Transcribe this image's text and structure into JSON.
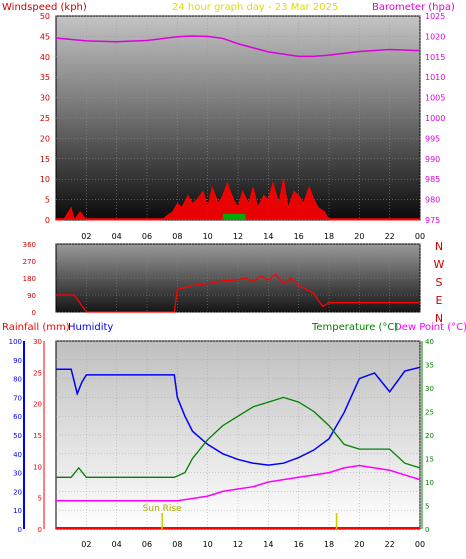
{
  "header": {
    "left_title": "Windspeed (kph)",
    "center_title": "24 hour graph day - 23 Mar 2025",
    "right_title": "Barometer (hpa)"
  },
  "middle_panel": {
    "compass_labels": [
      "N",
      "W",
      "S",
      "E",
      "N"
    ]
  },
  "bottom_header": {
    "rainfall": "Rainfall (mm)",
    "humidity": "Humidity",
    "temperature": "Temperature (°C)",
    "dewpoint": "Dew Point (°C)"
  },
  "annotation": {
    "sunrise": "Sun Rise"
  },
  "colors": {
    "frame": "#000000",
    "wind": "#ff0000",
    "gust": "#0000ff",
    "calm": "#00aa00",
    "barometer": "#dd00dd",
    "humidity": "#0000ff",
    "temperature": "#008000",
    "dewpoint": "#ff00ff",
    "rain": "#ff0000",
    "sun": "#cccc00",
    "title_left": "#cc0000",
    "title_center": "#dddd00",
    "title_right": "#dd00dd"
  },
  "chart_data": [
    {
      "type": "line",
      "name": "wind-barometer",
      "x_ticks": [
        "02",
        "04",
        "06",
        "08",
        "10",
        "12",
        "14",
        "16",
        "18",
        "20",
        "22",
        "00"
      ],
      "y_left_ticks": [
        "0",
        "5",
        "10",
        "15",
        "20",
        "25",
        "30",
        "35",
        "40",
        "45",
        "50"
      ],
      "y_right_ticks": [
        "975",
        "980",
        "985",
        "990",
        "995",
        "1000",
        "1005",
        "1010",
        "1015",
        "1020",
        "1025"
      ],
      "ylim_left": [
        0,
        50
      ],
      "ylim_right": [
        975,
        1025
      ],
      "series": [
        {
          "name": "Barometer (hpa)",
          "axis": "right",
          "x": [
            0,
            2,
            4,
            6,
            8,
            9,
            10,
            11,
            12,
            14,
            16,
            17,
            18,
            20,
            22,
            24
          ],
          "values": [
            1019.6,
            1018.9,
            1018.7,
            1019.0,
            1019.9,
            1020.1,
            1020.0,
            1019.5,
            1018.2,
            1016.2,
            1015.1,
            1015.1,
            1015.4,
            1016.3,
            1016.8,
            1016.5
          ]
        },
        {
          "name": "Windspeed (kph)",
          "axis": "left",
          "x": [
            0,
            0.5,
            1,
            1.2,
            1.6,
            2,
            7,
            7.3,
            7.7,
            8,
            8.3,
            8.7,
            9,
            9.3,
            9.7,
            10,
            10.3,
            10.7,
            11,
            11.3,
            11.7,
            12,
            12.3,
            12.7,
            13,
            13.3,
            13.7,
            14,
            14.3,
            14.7,
            15,
            15.3,
            15.7,
            16,
            16.3,
            16.7,
            17,
            17.3,
            17.7,
            18,
            24
          ],
          "values": [
            0,
            0,
            3,
            0,
            2,
            0,
            0,
            1,
            2,
            4,
            3,
            6,
            4,
            5,
            7,
            3,
            8,
            4,
            6,
            9,
            5,
            3,
            7,
            4,
            8,
            3,
            6,
            5,
            9,
            4,
            10,
            3,
            7,
            6,
            4,
            8,
            5,
            3,
            2,
            0,
            0
          ]
        }
      ]
    },
    {
      "type": "line",
      "name": "wind-direction",
      "y_ticks": [
        "360",
        "270",
        "180",
        "90",
        "0"
      ],
      "ylim": [
        0,
        360
      ],
      "series": [
        {
          "name": "Wind direction",
          "x": [
            0,
            0.5,
            1.2,
            1.6,
            2,
            6,
            7.8,
            8,
            9,
            10,
            11,
            12,
            12.5,
            13,
            13.5,
            14,
            14.5,
            15,
            15.5,
            16,
            16.5,
            17,
            17.3,
            17.6,
            18,
            20,
            22,
            24
          ],
          "values": [
            90,
            90,
            90,
            45,
            0,
            0,
            0,
            120,
            140,
            150,
            165,
            170,
            180,
            160,
            190,
            170,
            200,
            150,
            180,
            140,
            120,
            100,
            60,
            30,
            50,
            50,
            50,
            50
          ]
        }
      ]
    },
    {
      "type": "line",
      "name": "temperature-humidity-rain",
      "x_ticks": [
        "02",
        "04",
        "06",
        "08",
        "10",
        "12",
        "14",
        "16",
        "18",
        "20",
        "22",
        "00"
      ],
      "humidity_ticks": [
        "0",
        "10",
        "20",
        "30",
        "40",
        "50",
        "60",
        "70",
        "80",
        "90",
        "100"
      ],
      "rainfall_ticks": [
        "0",
        "5",
        "10",
        "15",
        "20",
        "25",
        "30"
      ],
      "temperature_ticks": [
        "0",
        "5",
        "10",
        "15",
        "20",
        "25",
        "30",
        "35",
        "40"
      ],
      "series": [
        {
          "name": "Humidity",
          "x": [
            0,
            1,
            1.4,
            1.7,
            2,
            2.2,
            7.8,
            8,
            8.5,
            9,
            10,
            11,
            12,
            13,
            14,
            15,
            16,
            17,
            18,
            19,
            20,
            21,
            22,
            23,
            24
          ],
          "values": [
            85,
            85,
            72,
            78,
            82,
            82,
            82,
            70,
            60,
            52,
            45,
            40,
            37,
            35,
            34,
            35,
            38,
            42,
            48,
            62,
            80,
            83,
            73,
            84,
            86
          ]
        },
        {
          "name": "Temperature (°C)",
          "x": [
            0,
            1,
            1.5,
            2,
            7.8,
            8.5,
            9,
            10,
            11,
            12,
            13,
            14,
            15,
            16,
            17,
            18,
            19,
            20,
            21,
            22,
            23,
            24
          ],
          "values": [
            11,
            11,
            13,
            11,
            11,
            12,
            15,
            19,
            22,
            24,
            26,
            27,
            28,
            27,
            25,
            22,
            18,
            17,
            17,
            17,
            14,
            13
          ]
        },
        {
          "name": "Dew Point (°C)",
          "x": [
            0,
            2,
            7.5,
            8,
            9,
            10,
            11,
            12,
            13,
            14,
            15,
            16,
            17,
            18,
            19,
            20,
            21,
            22,
            23,
            24
          ],
          "values": [
            6,
            6,
            6,
            6,
            6.5,
            7,
            8,
            8.5,
            9,
            10,
            10.5,
            11,
            11.5,
            12,
            13,
            13.5,
            13,
            12.5,
            11.5,
            10.5
          ]
        },
        {
          "name": "Rainfall (mm)",
          "x": [
            0,
            24
          ],
          "values": [
            0,
            0
          ]
        }
      ],
      "markers": [
        {
          "label": "Sun Rise",
          "x": 7
        },
        {
          "label": "",
          "x": 18.5
        }
      ]
    }
  ]
}
